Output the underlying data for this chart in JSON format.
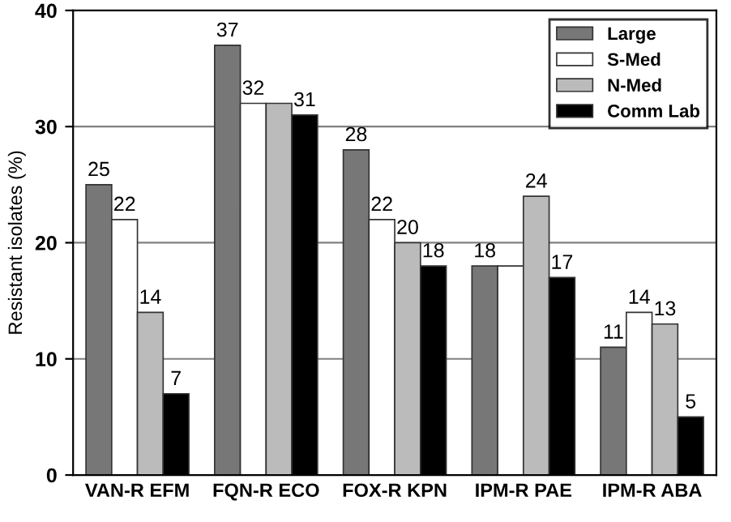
{
  "chart_data": {
    "type": "bar",
    "ylabel": "Resistant isolates (%)",
    "categories": [
      "VAN-R EFM",
      "FQN-R ECO",
      "FOX-R KPN",
      "IPM-R PAE",
      "IPM-R ABA"
    ],
    "series": [
      {
        "name": "Large",
        "color": "#777777",
        "values": [
          25,
          37,
          28,
          18,
          11
        ],
        "value_labels": [
          "25",
          "37",
          "28",
          "18",
          "11"
        ]
      },
      {
        "name": "S-Med",
        "color": "#ffffff",
        "values": [
          22,
          32,
          22,
          18,
          14
        ],
        "value_labels": [
          "22",
          "32",
          "22",
          null,
          "14"
        ]
      },
      {
        "name": "N-Med",
        "color": "#bbbbbb",
        "values": [
          14,
          32,
          20,
          24,
          13
        ],
        "value_labels": [
          "14",
          null,
          "20",
          "24",
          "13"
        ]
      },
      {
        "name": "Comm Lab",
        "color": "#000000",
        "values": [
          7,
          31,
          18,
          17,
          5
        ],
        "value_labels": [
          "7",
          "31",
          "18",
          "17",
          "5"
        ]
      }
    ],
    "ylim": [
      0,
      40
    ],
    "yticks": [
      0,
      10,
      20,
      30,
      40
    ],
    "grid": "y",
    "legend": "top right"
  }
}
